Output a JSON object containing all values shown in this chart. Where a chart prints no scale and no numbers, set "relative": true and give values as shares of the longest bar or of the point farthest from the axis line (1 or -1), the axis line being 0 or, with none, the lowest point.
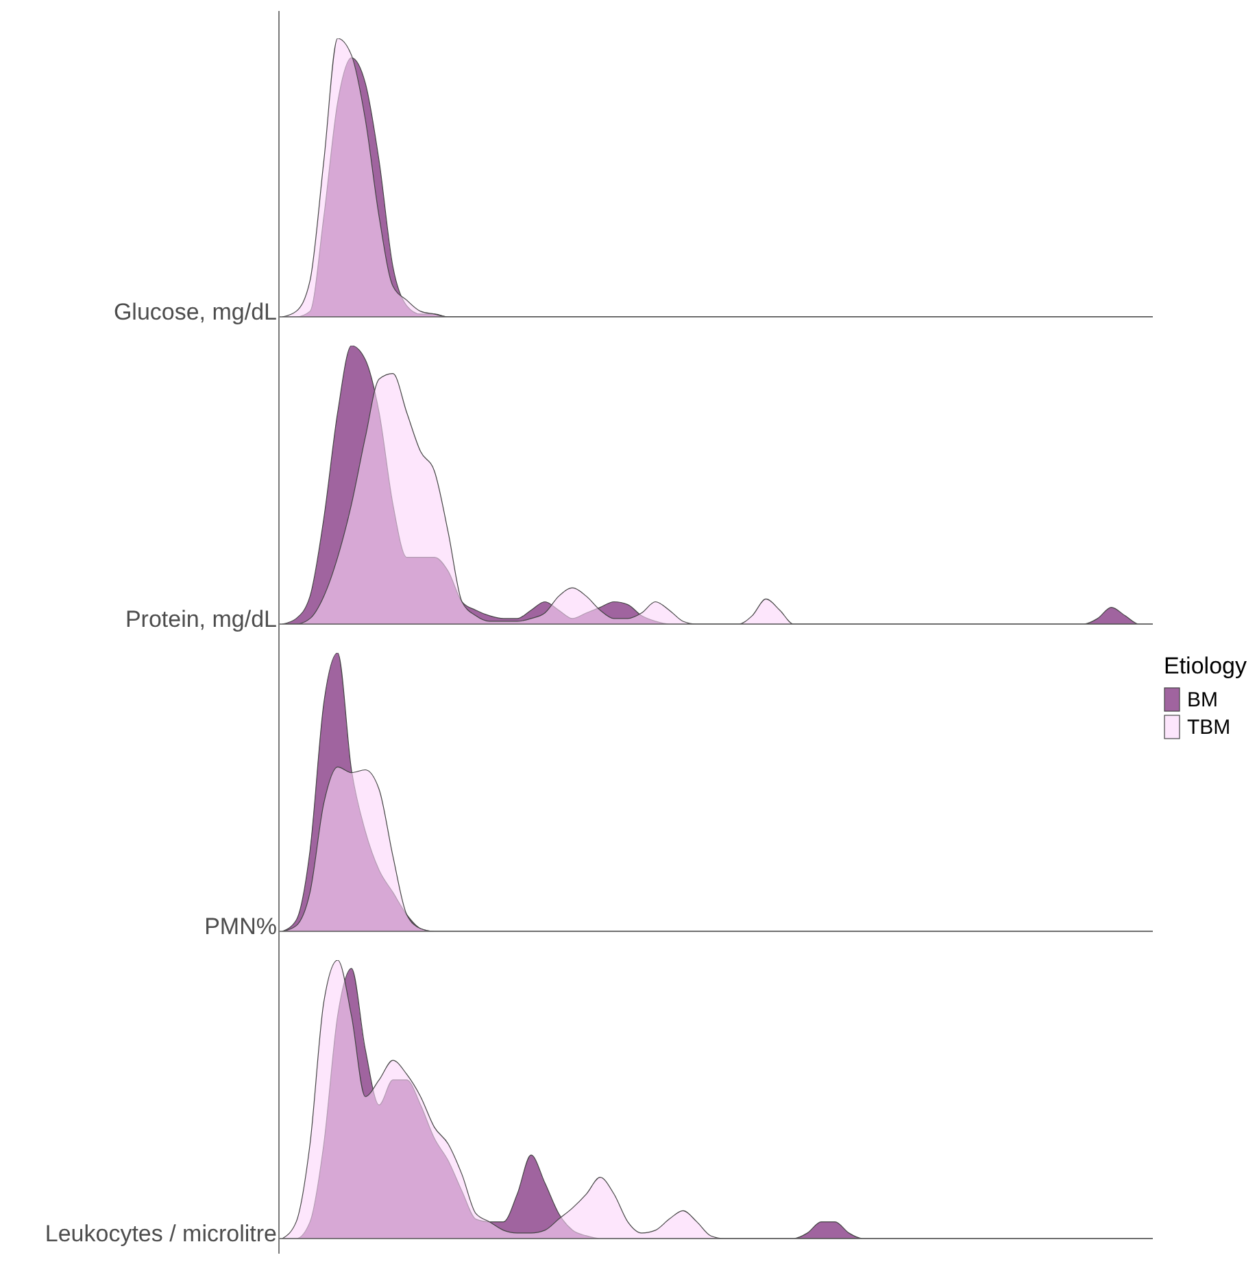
{
  "chart_data": [
    {
      "type": "area",
      "relative": true,
      "ylabel": "Glucose, mg/dL",
      "categories": [
        null,
        null,
        null,
        null,
        null,
        null,
        null,
        null,
        null,
        null,
        null,
        null,
        null,
        null,
        null,
        null,
        null,
        null,
        null,
        null,
        null,
        null,
        null,
        null,
        null,
        null,
        null,
        null,
        null,
        null,
        null,
        null,
        null,
        null,
        null,
        null,
        null,
        null,
        null,
        null,
        null,
        null,
        null,
        null,
        null,
        null,
        null,
        null,
        null,
        null,
        null,
        null,
        null,
        null,
        null,
        null,
        null,
        null,
        null,
        null,
        null,
        null,
        null,
        null
      ],
      "series": [
        {
          "color": "#a0649f",
          "values": [
            0,
            0,
            0.02,
            0.36,
            0.77,
            0.93,
            0.84,
            0.56,
            0.18,
            0.04,
            0.01,
            0.01,
            0,
            0,
            0,
            0,
            0,
            0,
            0,
            0,
            0,
            0,
            0,
            0,
            0,
            0,
            0,
            0,
            0,
            0,
            0,
            0,
            0,
            0,
            0,
            0,
            0,
            0,
            0,
            0,
            0,
            0,
            0,
            0,
            0,
            0,
            0,
            0,
            0,
            0,
            0,
            0,
            0,
            0,
            0,
            0,
            0,
            0,
            0,
            0,
            0,
            0,
            0,
            0
          ]
        },
        {
          "color": "#fcd6fa",
          "values": [
            0,
            0.02,
            0.13,
            0.56,
            1,
            0.94,
            0.71,
            0.36,
            0.11,
            0.06,
            0.02,
            0.01,
            0,
            0,
            0,
            0,
            0,
            0,
            0,
            0,
            0,
            0,
            0,
            0,
            0,
            0,
            0,
            0,
            0,
            0,
            0,
            0,
            0,
            0,
            0,
            0,
            0,
            0,
            0,
            0,
            0,
            0,
            0,
            0,
            0,
            0,
            0,
            0,
            0,
            0,
            0,
            0,
            0,
            0,
            0,
            0,
            0,
            0,
            0,
            0,
            0,
            0,
            0,
            0
          ]
        }
      ]
    },
    {
      "type": "area",
      "relative": true,
      "ylabel": "Protein, mg/dL",
      "categories": [
        null,
        null,
        null,
        null,
        null,
        null,
        null,
        null,
        null,
        null,
        null,
        null,
        null,
        null,
        null,
        null,
        null,
        null,
        null,
        null,
        null,
        null,
        null,
        null,
        null,
        null,
        null,
        null,
        null,
        null,
        null,
        null,
        null,
        null,
        null,
        null,
        null,
        null,
        null,
        null,
        null,
        null,
        null,
        null,
        null,
        null,
        null,
        null,
        null,
        null,
        null,
        null,
        null,
        null,
        null,
        null,
        null,
        null,
        null,
        null,
        null,
        null,
        null,
        null
      ],
      "series": [
        {
          "color": "#a0649f",
          "values": [
            0,
            0.02,
            0.1,
            0.38,
            0.76,
            1,
            0.95,
            0.76,
            0.43,
            0.24,
            0.24,
            0.24,
            0.19,
            0.08,
            0.05,
            0.03,
            0.02,
            0.02,
            0.05,
            0.08,
            0.05,
            0.02,
            0.04,
            0.06,
            0.08,
            0.07,
            0.03,
            0.01,
            0,
            0,
            0,
            0,
            0,
            0,
            0,
            0,
            0,
            0,
            0,
            0,
            0,
            0,
            0,
            0,
            0,
            0,
            0,
            0,
            0,
            0,
            0,
            0,
            0,
            0,
            0,
            0,
            0,
            0,
            0,
            0.02,
            0.06,
            0.03,
            0,
            0
          ]
        },
        {
          "color": "#fcd6fa",
          "values": [
            0,
            0,
            0.02,
            0.1,
            0.24,
            0.43,
            0.67,
            0.88,
            0.9,
            0.76,
            0.62,
            0.55,
            0.33,
            0.08,
            0.03,
            0.01,
            0.01,
            0.01,
            0.02,
            0.04,
            0.1,
            0.13,
            0.1,
            0.05,
            0.02,
            0.02,
            0.04,
            0.08,
            0.05,
            0.01,
            0,
            0,
            0,
            0,
            0.03,
            0.09,
            0.05,
            0,
            0,
            0,
            0,
            0,
            0,
            0,
            0,
            0,
            0,
            0,
            0,
            0,
            0,
            0,
            0,
            0,
            0,
            0,
            0,
            0,
            0,
            0,
            0,
            0,
            0,
            0
          ]
        }
      ]
    },
    {
      "type": "area",
      "relative": true,
      "ylabel": "PMN%",
      "legend": "top right",
      "legend_title": "Etiology",
      "categories": [
        null,
        null,
        null,
        null,
        null,
        null,
        null,
        null,
        null,
        null,
        null,
        null,
        null,
        null,
        null,
        null,
        null,
        null,
        null,
        null,
        null,
        null,
        null,
        null,
        null,
        null,
        null,
        null,
        null,
        null,
        null,
        null,
        null,
        null,
        null,
        null,
        null,
        null,
        null,
        null,
        null,
        null,
        null,
        null,
        null,
        null,
        null,
        null,
        null,
        null,
        null,
        null,
        null,
        null,
        null,
        null,
        null,
        null,
        null,
        null,
        null,
        null,
        null,
        null
      ],
      "series": [
        {
          "name": "BM",
          "color": "#a0649f",
          "values": [
            0,
            0.04,
            0.29,
            0.82,
            1,
            0.58,
            0.36,
            0.22,
            0.14,
            0.06,
            0.01,
            0,
            0,
            0,
            0,
            0,
            0,
            0,
            0,
            0,
            0,
            0,
            0,
            0,
            0,
            0,
            0,
            0,
            0,
            0,
            0,
            0,
            0,
            0,
            0,
            0,
            0,
            0,
            0,
            0,
            0,
            0,
            0,
            0,
            0,
            0,
            0,
            0,
            0,
            0,
            0,
            0,
            0,
            0,
            0,
            0,
            0,
            0,
            0,
            0,
            0,
            0,
            0,
            0
          ]
        },
        {
          "name": "TBM",
          "color": "#fcd6fa",
          "values": [
            0,
            0.02,
            0.14,
            0.46,
            0.59,
            0.57,
            0.58,
            0.51,
            0.27,
            0.06,
            0.01,
            0,
            0,
            0,
            0,
            0,
            0,
            0,
            0,
            0,
            0,
            0,
            0,
            0,
            0,
            0,
            0,
            0,
            0,
            0,
            0,
            0,
            0,
            0,
            0,
            0,
            0,
            0,
            0,
            0,
            0,
            0,
            0,
            0,
            0,
            0,
            0,
            0,
            0,
            0,
            0,
            0,
            0,
            0,
            0,
            0,
            0,
            0,
            0,
            0,
            0,
            0,
            0,
            0
          ]
        }
      ]
    },
    {
      "type": "area",
      "relative": true,
      "ylabel": "Leukocytes / microlitre",
      "categories": [
        null,
        null,
        null,
        null,
        null,
        null,
        null,
        null,
        null,
        null,
        null,
        null,
        null,
        null,
        null,
        null,
        null,
        null,
        null,
        null,
        null,
        null,
        null,
        null,
        null,
        null,
        null,
        null,
        null,
        null,
        null,
        null,
        null,
        null,
        null,
        null,
        null,
        null,
        null,
        null,
        null,
        null,
        null,
        null,
        null,
        null,
        null,
        null,
        null,
        null,
        null,
        null,
        null,
        null,
        null,
        null,
        null,
        null,
        null,
        null,
        null,
        null,
        null,
        null
      ],
      "series": [
        {
          "color": "#a0649f",
          "values": [
            0,
            0,
            0.06,
            0.34,
            0.8,
            0.97,
            0.68,
            0.48,
            0.57,
            0.57,
            0.48,
            0.36,
            0.28,
            0.17,
            0.07,
            0.06,
            0.06,
            0.16,
            0.3,
            0.2,
            0.09,
            0.03,
            0.01,
            0,
            0,
            0,
            0,
            0,
            0,
            0,
            0,
            0,
            0,
            0,
            0,
            0,
            0,
            0,
            0.02,
            0.06,
            0.06,
            0.02,
            0,
            0,
            0,
            0,
            0,
            0,
            0,
            0,
            0,
            0,
            0,
            0,
            0,
            0,
            0,
            0,
            0,
            0,
            0,
            0,
            0,
            0
          ]
        },
        {
          "color": "#fcd6fa",
          "values": [
            0,
            0.06,
            0.34,
            0.85,
            1,
            0.8,
            0.51,
            0.57,
            0.64,
            0.59,
            0.51,
            0.4,
            0.34,
            0.23,
            0.09,
            0.06,
            0.03,
            0.02,
            0.02,
            0.03,
            0.07,
            0.11,
            0.16,
            0.22,
            0.16,
            0.06,
            0.02,
            0.03,
            0.07,
            0.1,
            0.06,
            0.01,
            0,
            0,
            0,
            0,
            0,
            0,
            0,
            0,
            0,
            0,
            0,
            0,
            0,
            0,
            0,
            0,
            0,
            0,
            0,
            0,
            0,
            0,
            0,
            0,
            0,
            0,
            0,
            0,
            0,
            0,
            0,
            0
          ]
        }
      ]
    }
  ]
}
